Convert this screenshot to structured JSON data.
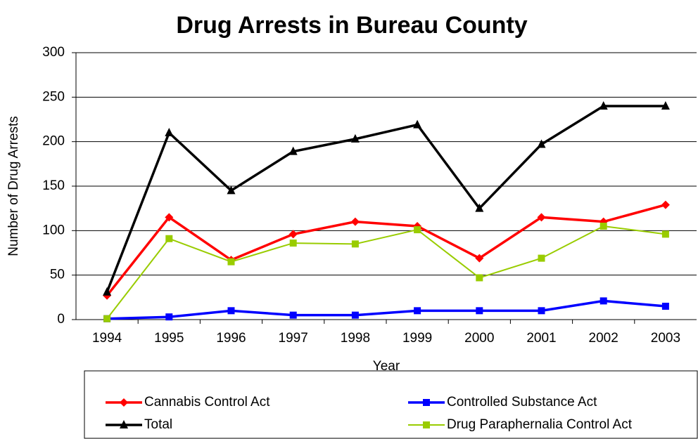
{
  "chart_data": {
    "type": "line",
    "title": "Drug Arrests in Bureau County",
    "x_label": "Year",
    "y_label": "Number of Drug Arrests",
    "categories": [
      "1994",
      "1995",
      "1996",
      "1997",
      "1998",
      "1999",
      "2000",
      "2001",
      "2002",
      "2003"
    ],
    "series": [
      {
        "name": "Cannabis Control Act",
        "color": "#ff0000",
        "marker": "diamond",
        "values": [
          27,
          115,
          67,
          96,
          110,
          105,
          69,
          115,
          110,
          129
        ]
      },
      {
        "name": "Controlled Substance Act",
        "color": "#0000ff",
        "marker": "square",
        "values": [
          1,
          3,
          10,
          5,
          5,
          10,
          10,
          10,
          21,
          15
        ]
      },
      {
        "name": "Total",
        "color": "#000000",
        "marker": "triangle",
        "values": [
          31,
          210,
          145,
          189,
          203,
          219,
          125,
          197,
          240,
          240
        ]
      },
      {
        "name": "Drug Paraphernalia Control Act",
        "color": "#99cc00",
        "marker": "square",
        "values": [
          1,
          91,
          65,
          86,
          85,
          101,
          47,
          69,
          105,
          96
        ]
      }
    ],
    "ylim": [
      0,
      300
    ],
    "yticks": [
      0,
      50,
      100,
      150,
      200,
      250,
      300
    ],
    "grid": true
  }
}
